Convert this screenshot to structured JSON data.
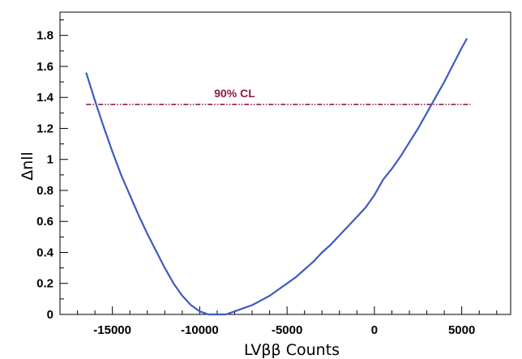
{
  "chart_data": {
    "type": "line",
    "title": "",
    "xlabel": "LVββ Counts",
    "ylabel": "Δnll",
    "xlim": [
      -18000,
      7800
    ],
    "ylim": [
      0,
      1.95
    ],
    "x_ticks": [
      -15000,
      -10000,
      -5000,
      0,
      5000
    ],
    "x_tick_labels": [
      "-15000",
      "-10000",
      "-5000",
      "0",
      "5000"
    ],
    "y_ticks": [
      0,
      0.2,
      0.4,
      0.6,
      0.8,
      1,
      1.2,
      1.4,
      1.6,
      1.8
    ],
    "y_tick_labels": [
      "0",
      "0.2",
      "0.4",
      "0.6",
      "0.8",
      "1",
      "1.2",
      "1.4",
      "1.6",
      "1.8"
    ],
    "grid": false,
    "series": [
      {
        "color": "#3f5bbf",
        "x": [
          -16500,
          -16000,
          -15500,
          -15000,
          -14500,
          -14000,
          -13500,
          -13000,
          -12500,
          -12000,
          -11500,
          -11000,
          -10500,
          -10000,
          -9500,
          -9000,
          -8500,
          -8000,
          -7500,
          -7000,
          -6500,
          -6000,
          -5500,
          -5000,
          -4500,
          -4000,
          -3500,
          -3000,
          -2500,
          -2000,
          -1500,
          -1000,
          -500,
          0,
          500,
          1000,
          1500,
          2000,
          2500,
          3000,
          3500,
          4000,
          4500,
          5000,
          5300
        ],
        "y": [
          1.56,
          1.38,
          1.21,
          1.05,
          0.9,
          0.77,
          0.64,
          0.52,
          0.41,
          0.3,
          0.2,
          0.12,
          0.06,
          0.02,
          0.0,
          0.0,
          0.0,
          0.02,
          0.04,
          0.06,
          0.09,
          0.12,
          0.16,
          0.2,
          0.24,
          0.29,
          0.34,
          0.4,
          0.45,
          0.51,
          0.57,
          0.63,
          0.69,
          0.77,
          0.87,
          0.94,
          1.02,
          1.11,
          1.2,
          1.3,
          1.4,
          1.5,
          1.61,
          1.72,
          1.78
        ]
      }
    ],
    "reference_line": {
      "label": "90% CL",
      "y": 1.355,
      "x_range": [
        -16500,
        5500
      ],
      "color": "#8b1c4f"
    }
  }
}
